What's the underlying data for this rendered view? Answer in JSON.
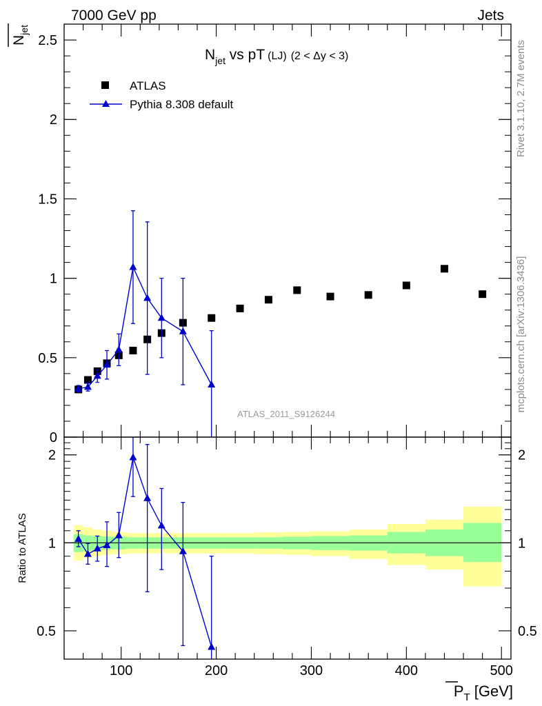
{
  "header": {
    "left": "7000 GeV pp",
    "right": "Jets"
  },
  "side": {
    "rivet": "Rivet 3.1.10,  2.7M events",
    "mcplots": "mcplots.cern.ch [arXiv:1306.3436]"
  },
  "chart_data": [
    {
      "type": "scatter",
      "title": {
        "main": "N",
        "sub": "jet",
        "rest": " vs pT",
        "small": "(LJ)",
        "range": "(2 < Δy < 3)"
      },
      "ylabel": {
        "main": "N",
        "sub": "jet"
      },
      "xlabel": {
        "main": "P",
        "sub": "T",
        "unit": "[GeV]"
      },
      "watermark": "ATLAS_2011_S9126244",
      "xlim": [
        40,
        510
      ],
      "ylim": [
        0,
        2.6
      ],
      "yticks": [
        {
          "v": 0,
          "label": "0"
        },
        {
          "v": 0.5,
          "label": "0.5"
        },
        {
          "v": 1,
          "label": "1"
        },
        {
          "v": 1.5,
          "label": "1.5"
        },
        {
          "v": 2,
          "label": "2"
        },
        {
          "v": 2.5,
          "label": "2.5"
        }
      ],
      "legend": {
        "position": "top-left",
        "entries": [
          {
            "label": "ATLAS",
            "marker": "square",
            "color": "#000000"
          },
          {
            "label": "Pythia 8.308 default",
            "marker": "triangle",
            "color": "#0000cc"
          }
        ]
      },
      "series": [
        {
          "name": "ATLAS",
          "color": "#000000",
          "marker": "square",
          "points": [
            {
              "x": 55,
              "y": 0.3
            },
            {
              "x": 65,
              "y": 0.36
            },
            {
              "x": 75,
              "y": 0.415
            },
            {
              "x": 85,
              "y": 0.465
            },
            {
              "x": 97.5,
              "y": 0.515
            },
            {
              "x": 112.5,
              "y": 0.545
            },
            {
              "x": 127.5,
              "y": 0.615
            },
            {
              "x": 142.5,
              "y": 0.655
            },
            {
              "x": 165,
              "y": 0.72
            },
            {
              "x": 195,
              "y": 0.75
            },
            {
              "x": 225,
              "y": 0.81
            },
            {
              "x": 255,
              "y": 0.865
            },
            {
              "x": 285,
              "y": 0.925
            },
            {
              "x": 320,
              "y": 0.885
            },
            {
              "x": 360,
              "y": 0.895
            },
            {
              "x": 400,
              "y": 0.955
            },
            {
              "x": 440,
              "y": 1.06
            },
            {
              "x": 480,
              "y": 0.9
            }
          ]
        },
        {
          "name": "Pythia 8.308 default",
          "color": "#0000cc",
          "marker": "triangle",
          "points": [
            {
              "x": 55,
              "y": 0.305,
              "err": 0.02
            },
            {
              "x": 65,
              "y": 0.315,
              "err": 0.025
            },
            {
              "x": 75,
              "y": 0.385,
              "err": 0.04
            },
            {
              "x": 85,
              "y": 0.455,
              "err": 0.09
            },
            {
              "x": 97.5,
              "y": 0.55,
              "err": 0.1
            },
            {
              "x": 112.5,
              "y": 1.07,
              "err": 0.355
            },
            {
              "x": 127.5,
              "y": 0.875,
              "err": 0.48
            },
            {
              "x": 142.5,
              "y": 0.75,
              "err": 0.25
            },
            {
              "x": 165,
              "y": 0.665,
              "err": 0.335
            },
            {
              "x": 195,
              "y": 0.33,
              "err": 0.34
            }
          ]
        }
      ]
    },
    {
      "type": "scatter",
      "ylabel": "Ratio to ATLAS",
      "xlim": [
        40,
        510
      ],
      "ylim": [
        0.4,
        2.3
      ],
      "log_y": true,
      "yticks": [
        {
          "v": 0.5,
          "label": "0.5"
        },
        {
          "v": 1,
          "label": "1"
        },
        {
          "v": 2,
          "label": "2"
        }
      ],
      "xticks": [
        {
          "v": 100,
          "label": "100"
        },
        {
          "v": 200,
          "label": "200"
        },
        {
          "v": 300,
          "label": "300"
        },
        {
          "v": 400,
          "label": "400"
        },
        {
          "v": 500,
          "label": "500"
        }
      ],
      "bands": [
        {
          "x0": 50,
          "x1": 60,
          "inner": [
            0.93,
            1.07
          ],
          "outer": [
            0.87,
            1.15
          ]
        },
        {
          "x0": 60,
          "x1": 70,
          "inner": [
            0.94,
            1.06
          ],
          "outer": [
            0.89,
            1.13
          ]
        },
        {
          "x0": 70,
          "x1": 80,
          "inner": [
            0.945,
            1.055
          ],
          "outer": [
            0.9,
            1.11
          ]
        },
        {
          "x0": 80,
          "x1": 90,
          "inner": [
            0.95,
            1.05
          ],
          "outer": [
            0.91,
            1.1
          ]
        },
        {
          "x0": 90,
          "x1": 105,
          "inner": [
            0.95,
            1.05
          ],
          "outer": [
            0.915,
            1.09
          ]
        },
        {
          "x0": 105,
          "x1": 120,
          "inner": [
            0.955,
            1.045
          ],
          "outer": [
            0.92,
            1.08
          ]
        },
        {
          "x0": 120,
          "x1": 135,
          "inner": [
            0.955,
            1.045
          ],
          "outer": [
            0.92,
            1.08
          ]
        },
        {
          "x0": 135,
          "x1": 150,
          "inner": [
            0.955,
            1.045
          ],
          "outer": [
            0.92,
            1.08
          ]
        },
        {
          "x0": 150,
          "x1": 180,
          "inner": [
            0.955,
            1.045
          ],
          "outer": [
            0.92,
            1.08
          ]
        },
        {
          "x0": 180,
          "x1": 210,
          "inner": [
            0.955,
            1.045
          ],
          "outer": [
            0.92,
            1.08
          ]
        },
        {
          "x0": 210,
          "x1": 240,
          "inner": [
            0.955,
            1.045
          ],
          "outer": [
            0.92,
            1.08
          ]
        },
        {
          "x0": 240,
          "x1": 270,
          "inner": [
            0.955,
            1.045
          ],
          "outer": [
            0.915,
            1.085
          ]
        },
        {
          "x0": 270,
          "x1": 300,
          "inner": [
            0.95,
            1.05
          ],
          "outer": [
            0.91,
            1.09
          ]
        },
        {
          "x0": 300,
          "x1": 340,
          "inner": [
            0.945,
            1.055
          ],
          "outer": [
            0.9,
            1.095
          ]
        },
        {
          "x0": 340,
          "x1": 380,
          "inner": [
            0.94,
            1.06
          ],
          "outer": [
            0.88,
            1.11
          ]
        },
        {
          "x0": 380,
          "x1": 420,
          "inner": [
            0.92,
            1.09
          ],
          "outer": [
            0.84,
            1.16
          ]
        },
        {
          "x0": 420,
          "x1": 460,
          "inner": [
            0.9,
            1.11
          ],
          "outer": [
            0.81,
            1.2
          ]
        },
        {
          "x0": 460,
          "x1": 500,
          "inner": [
            0.86,
            1.17
          ],
          "outer": [
            0.71,
            1.33
          ]
        }
      ],
      "colors": {
        "inner_band": "#99ff99",
        "outer_band": "#ffff99"
      },
      "series": [
        {
          "name": "Pythia 8.308 default",
          "color": "#0000cc",
          "marker": "triangle",
          "points": [
            {
              "x": 55,
              "y": 1.03,
              "err_lo": 0.06,
              "err_hi": 0.07
            },
            {
              "x": 65,
              "y": 0.915,
              "err_lo": 0.07,
              "err_hi": 0.08
            },
            {
              "x": 75,
              "y": 0.955,
              "err_lo": 0.09,
              "err_hi": 0.1
            },
            {
              "x": 85,
              "y": 0.98,
              "err_lo": 0.15,
              "err_hi": 0.2
            },
            {
              "x": 97.5,
              "y": 1.06,
              "err_lo": 0.17,
              "err_hi": 0.21
            },
            {
              "x": 112.5,
              "y": 1.96,
              "err_lo": 0.52,
              "err_hi": 0.66
            },
            {
              "x": 127.5,
              "y": 1.42,
              "err_lo": 0.74,
              "err_hi": 0.75
            },
            {
              "x": 142.5,
              "y": 1.145,
              "err_lo": 0.335,
              "err_hi": 0.39
            },
            {
              "x": 165,
              "y": 0.935,
              "err_lo": 0.49,
              "err_hi": 0.44
            },
            {
              "x": 195,
              "y": 0.44,
              "err_lo": 0.06,
              "err_hi": 0.46
            }
          ]
        }
      ]
    }
  ]
}
